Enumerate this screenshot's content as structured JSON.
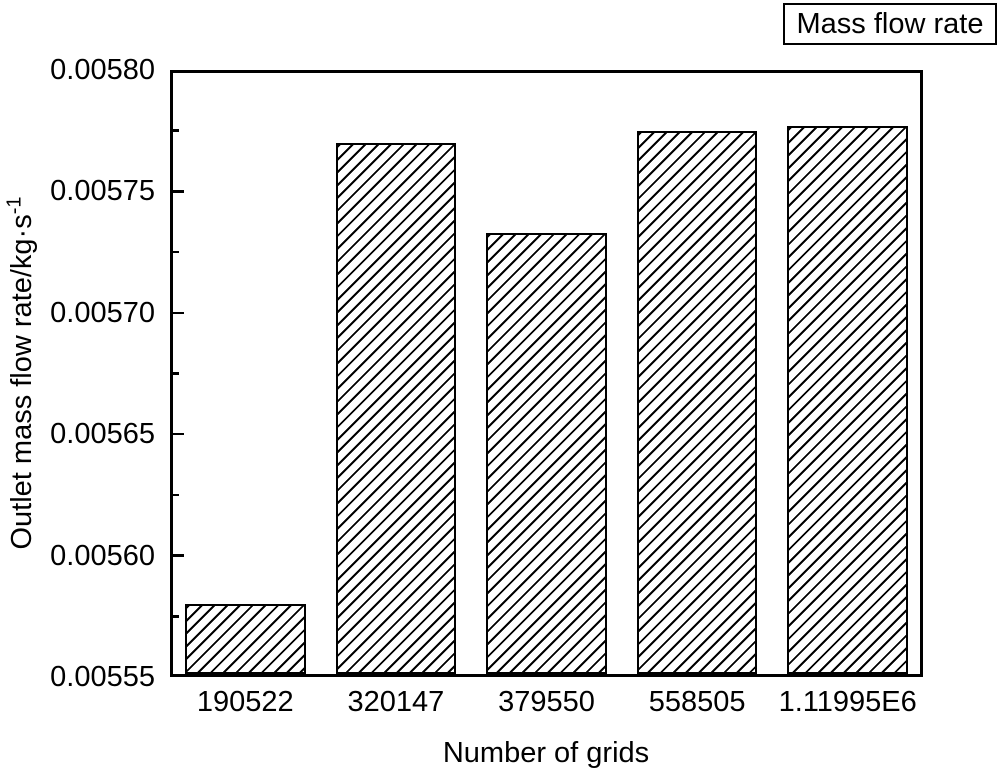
{
  "chart_data": {
    "type": "bar",
    "title": "",
    "categories": [
      "190522",
      "320147",
      "379550",
      "558505",
      "1.11995E6"
    ],
    "values": [
      0.00558,
      0.00577,
      0.005733,
      0.005775,
      0.005777
    ],
    "xlabel": "Number of grids",
    "ylabel": "Outlet mass flow rate/kg·s⁻¹",
    "ylabel_base": "Outlet mass flow rate/kg·s",
    "ylabel_superscript": "-1",
    "ylim": [
      0.00555,
      0.0058
    ],
    "ytick_step": 5e-05,
    "ytick_minor_step": 2.5e-05,
    "ytick_decimals": 5,
    "ytick_labels": [
      "0.00555",
      "0.00560",
      "0.00565",
      "0.00570",
      "0.00575",
      "0.00580"
    ],
    "grid": false,
    "legend": {
      "label": "Mass flow rate",
      "position": "top-right"
    },
    "bar_style": {
      "fill_color": "#ffffff",
      "edge_color": "#000000",
      "hatch": "/",
      "bar_width_fraction": 0.8
    },
    "colors": {
      "background": "#ffffff",
      "foreground": "#000000"
    }
  }
}
